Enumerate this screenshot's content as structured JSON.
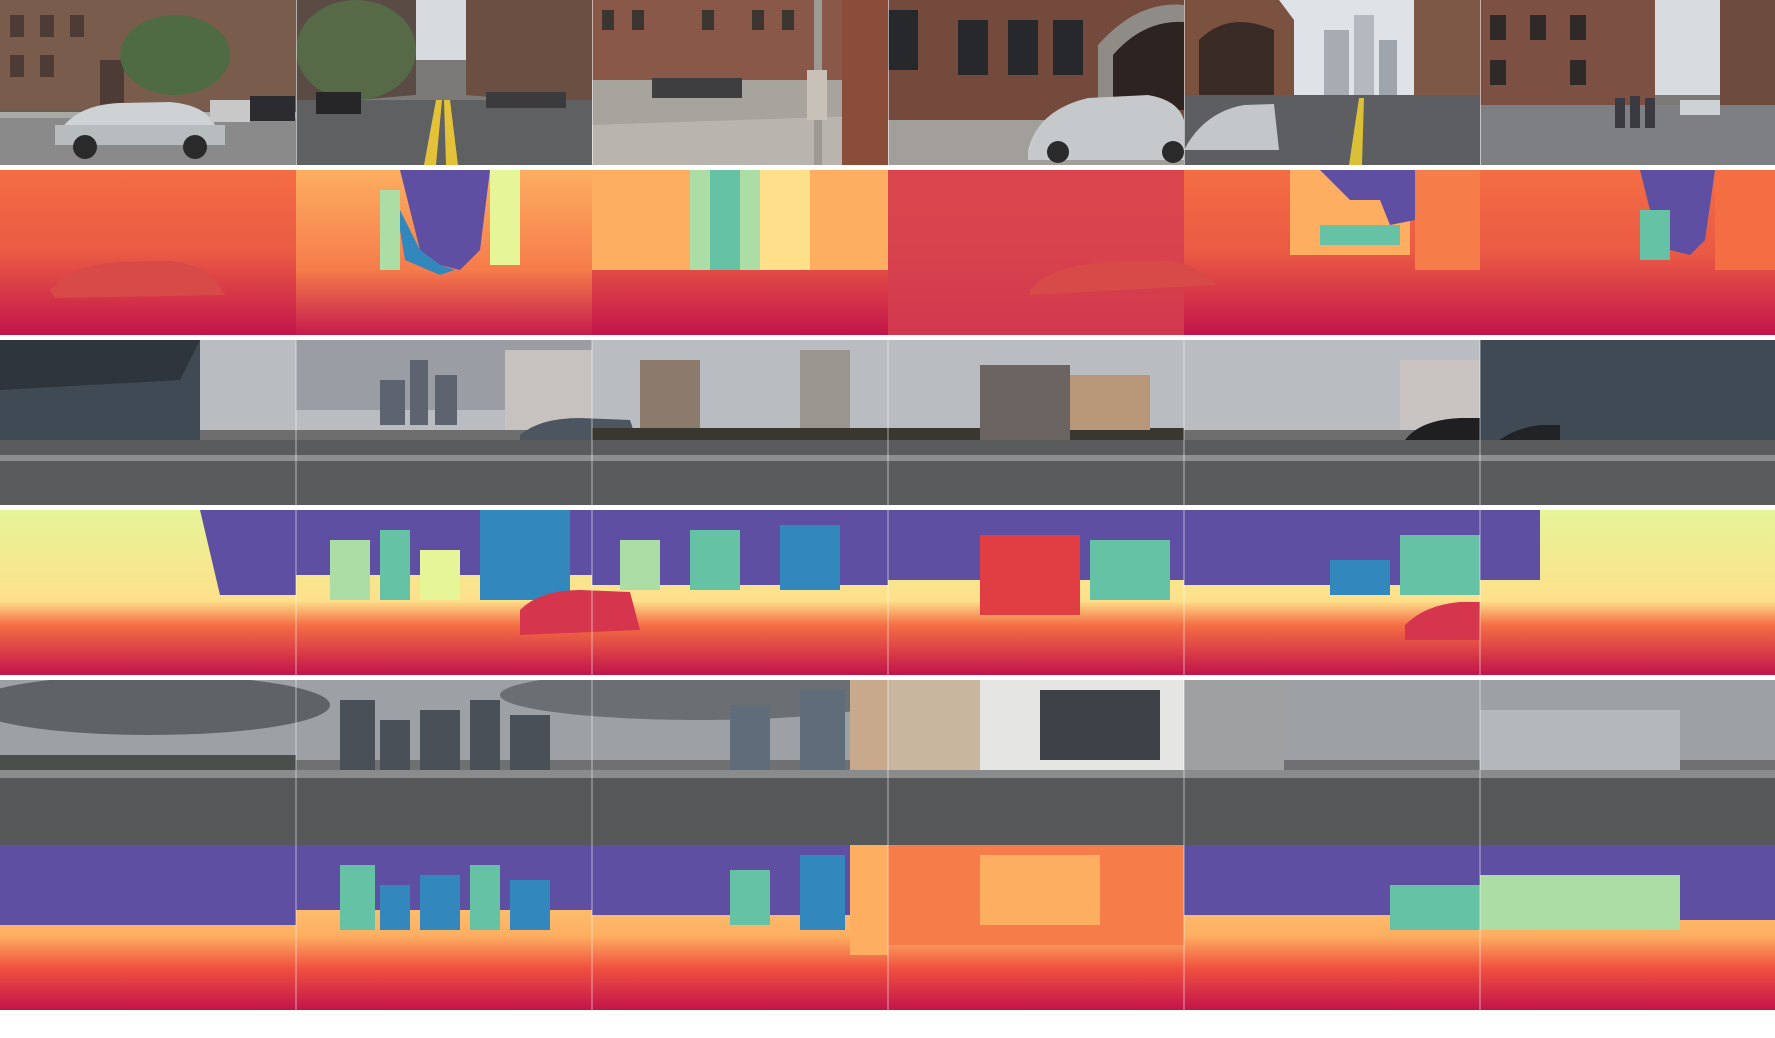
{
  "figure": {
    "sets": [
      {
        "scene": "city-street-brick-buildings",
        "rgb_row": "camera-row-1",
        "depth_row": "depth-row-1"
      },
      {
        "scene": "waterfront-highway-skyline",
        "rgb_row": "camera-row-2",
        "depth_row": "depth-row-2"
      },
      {
        "scene": "seaport-overpass-cloudy",
        "rgb_row": "camera-row-3",
        "depth_row": "depth-row-3"
      }
    ],
    "views_per_row": 6,
    "depth_colormap": [
      "#5e4fa2",
      "#3288bd",
      "#66c2a5",
      "#abdda4",
      "#e6f598",
      "#fee08b",
      "#fdae61",
      "#f46d43",
      "#d53e4f",
      "#c2144b"
    ]
  }
}
